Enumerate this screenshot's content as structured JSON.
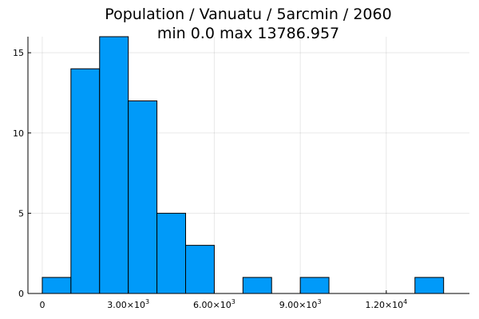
{
  "chart_data": {
    "type": "bar",
    "title": "Population / Vanuatu / 5arcmin / 2060",
    "subtitle": "min 0.0  max 13786.957",
    "xlabel": "",
    "ylabel": "",
    "bin_width": 1000,
    "bins": [
      {
        "start": 0,
        "end": 1000,
        "count": 1
      },
      {
        "start": 1000,
        "end": 2000,
        "count": 14
      },
      {
        "start": 2000,
        "end": 3000,
        "count": 16
      },
      {
        "start": 3000,
        "end": 4000,
        "count": 12
      },
      {
        "start": 4000,
        "end": 5000,
        "count": 5
      },
      {
        "start": 5000,
        "end": 6000,
        "count": 3
      },
      {
        "start": 6000,
        "end": 7000,
        "count": 0
      },
      {
        "start": 7000,
        "end": 8000,
        "count": 1
      },
      {
        "start": 8000,
        "end": 9000,
        "count": 0
      },
      {
        "start": 9000,
        "end": 10000,
        "count": 1
      },
      {
        "start": 10000,
        "end": 11000,
        "count": 0
      },
      {
        "start": 11000,
        "end": 12000,
        "count": 0
      },
      {
        "start": 12000,
        "end": 13000,
        "count": 0
      },
      {
        "start": 13000,
        "end": 14000,
        "count": 1
      }
    ],
    "xlim": [
      -500,
      14900
    ],
    "ylim": [
      0,
      16
    ],
    "x_ticks": [
      {
        "value": 0,
        "mantissa": "0",
        "exponent": ""
      },
      {
        "value": 3000,
        "mantissa": "3.00×10",
        "exponent": "3"
      },
      {
        "value": 6000,
        "mantissa": "6.00×10",
        "exponent": "3"
      },
      {
        "value": 9000,
        "mantissa": "9.00×10",
        "exponent": "3"
      },
      {
        "value": 12000,
        "mantissa": "1.20×10",
        "exponent": "4"
      }
    ],
    "y_ticks": [
      {
        "value": 0,
        "label": "0"
      },
      {
        "value": 5,
        "label": "5"
      },
      {
        "value": 10,
        "label": "10"
      },
      {
        "value": 15,
        "label": "15"
      }
    ],
    "bar_color": "#009af9",
    "grid": true,
    "legend": "none"
  }
}
